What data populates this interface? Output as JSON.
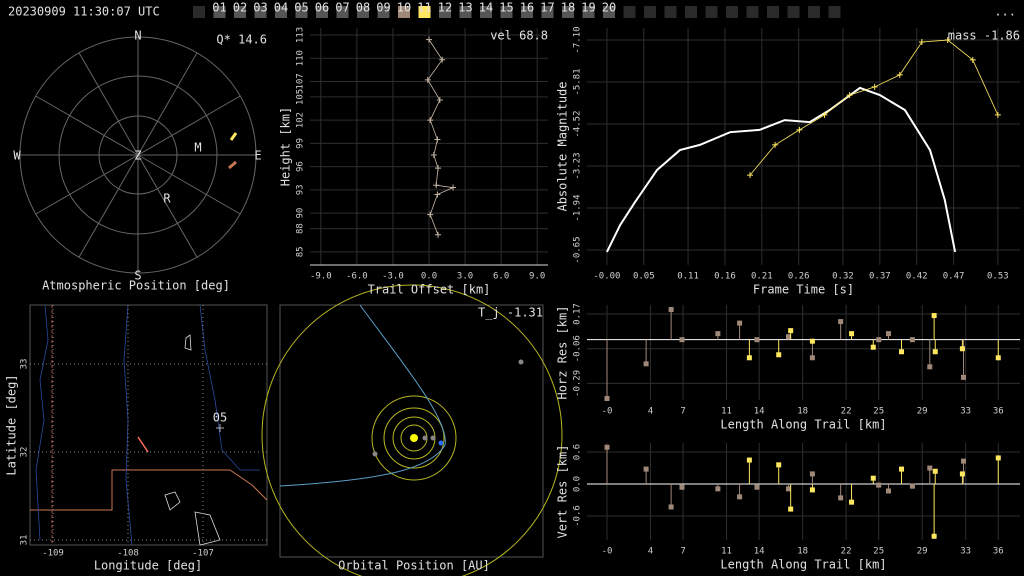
{
  "header": {
    "timestamp": "20230909 11:30:07 UTC",
    "frames": [
      "01",
      "02",
      "03",
      "04",
      "05",
      "06",
      "07",
      "08",
      "09",
      "10",
      "11",
      "12",
      "13",
      "14",
      "15",
      "16",
      "17",
      "18",
      "19",
      "20"
    ],
    "current_frame": "11",
    "menu": "..."
  },
  "polar": {
    "label": "Atmospheric Position [deg]",
    "stat": "Q* 14.6",
    "directions": {
      "north": "N",
      "east": "E",
      "south": "S",
      "west": "W",
      "zenith": "Z"
    },
    "stations": [
      "M",
      "R"
    ]
  },
  "height": {
    "type": "line",
    "stat": "vel 68.8",
    "xlabel": "Trail Offset [km]",
    "ylabel": "Height [km]",
    "xlim": [
      -9.9,
      9.9
    ],
    "ylim": [
      83.3,
      113.9
    ],
    "xticks": [
      {
        "value": -9,
        "label": "-9.0"
      },
      {
        "value": -6,
        "label": "-6.0"
      },
      {
        "value": -3,
        "label": "-3.0"
      },
      {
        "value": 0,
        "label": "0.0"
      },
      {
        "value": 3,
        "label": "3.0"
      },
      {
        "value": 6,
        "label": "6.0"
      },
      {
        "value": 9,
        "label": "9.0"
      }
    ],
    "yticks": [
      85,
      88,
      90,
      93,
      96,
      99,
      102,
      105,
      107,
      110,
      113
    ],
    "color": "#c8b8a8",
    "x": [
      0,
      1.1,
      -0.1,
      0.9,
      0.1,
      0.7,
      0.4,
      0.75,
      0.6,
      2.0,
      0.7,
      0.1,
      0.75
    ],
    "values": [
      112.4,
      109.8,
      107.2,
      104.6,
      102.0,
      99.5,
      97.5,
      95.8,
      93.6,
      93.3,
      92.4,
      89.8,
      87.2
    ]
  },
  "magnitude": {
    "type": "line",
    "stat": "mass -1.86",
    "xlabel": "Frame Time [s]",
    "ylabel": "Absolute Magnitude",
    "xlim": [
      -0.027,
      0.56
    ],
    "ylim": [
      -0.19,
      -7.47
    ],
    "xticks": [
      {
        "value": 0,
        "label": "-0.00"
      },
      0.05,
      0.11,
      0.16,
      0.21,
      0.26,
      0.32,
      0.37,
      0.42,
      0.47,
      0.53
    ],
    "yticks": [
      {
        "value": -7.1,
        "label": "-7.10"
      },
      -5.81,
      -4.52,
      -3.23,
      -1.94,
      -0.65
    ],
    "series": [
      {
        "color": "#ffffff",
        "x": [
          0.0,
          0.018,
          0.038,
          0.068,
          0.099,
          0.126,
          0.167,
          0.207,
          0.241,
          0.275,
          0.302,
          0.343,
          0.37,
          0.404,
          0.438,
          0.458,
          0.472
        ],
        "values": [
          -0.59,
          -1.42,
          -2.12,
          -3.11,
          -3.72,
          -3.88,
          -4.27,
          -4.34,
          -4.64,
          -4.58,
          -4.95,
          -5.63,
          -5.41,
          -4.95,
          -3.72,
          -2.19,
          -0.59
        ]
      },
      {
        "color": "#ffe860",
        "x": [
          0.194,
          0.228,
          0.261,
          0.295,
          0.329,
          0.363,
          0.397,
          0.427,
          0.462,
          0.496,
          0.53
        ],
        "values": [
          -2.95,
          -3.88,
          -4.34,
          -4.8,
          -5.41,
          -5.66,
          -6.03,
          -7.04,
          -7.1,
          -6.49,
          -4.8
        ]
      }
    ]
  },
  "map": {
    "xlabel": "Longitude [deg]",
    "ylabel": "Latitude [deg]",
    "station_label": "05",
    "xticks": [
      -109,
      -108,
      -107
    ],
    "yticks": [
      33,
      32,
      31
    ]
  },
  "orbit": {
    "label": "Orbital Position [AU]",
    "stat": "T_j -1.31"
  },
  "horz": {
    "type": "scatter",
    "xlabel": "Length Along Trail [km]",
    "ylabel": "Horz Res [km]",
    "xlim": [
      -1.84,
      38.0
    ],
    "ylim": [
      -0.4,
      0.23
    ],
    "xticks": [
      {
        "value": 0,
        "label": "-0"
      },
      4,
      7,
      11,
      14,
      18,
      22,
      25,
      29,
      33,
      36
    ],
    "yticks": [
      0.17,
      -0.06,
      -0.29
    ],
    "series": [
      {
        "color": "#a08878",
        "x": [
          0.0,
          3.6,
          5.9,
          6.9,
          10.2,
          12.2,
          13.8,
          16.7,
          18.9,
          21.5,
          25.0,
          25.9,
          28.1,
          29.7,
          32.8
        ],
        "values": [
          -0.39,
          -0.16,
          0.2,
          0.0,
          0.04,
          0.11,
          0.0,
          0.02,
          -0.12,
          0.12,
          0.0,
          0.04,
          0.0,
          -0.18,
          -0.25
        ]
      },
      {
        "color": "#ffe860",
        "x": [
          13.1,
          15.8,
          16.9,
          18.9,
          22.5,
          24.5,
          27.1,
          30.1,
          30.2,
          32.7,
          36.0
        ],
        "values": [
          -0.12,
          -0.1,
          0.06,
          -0.01,
          0.04,
          -0.05,
          -0.08,
          0.16,
          -0.08,
          -0.06,
          -0.12
        ]
      }
    ]
  },
  "vert": {
    "type": "scatter",
    "xlabel": "Length Along Trail [km]",
    "ylabel": "Vert Res [km]",
    "xlim": [
      -1.84,
      38.0
    ],
    "ylim": [
      -1.05,
      0.77
    ],
    "xticks": [
      {
        "value": 0,
        "label": "-0"
      },
      4,
      7,
      11,
      14,
      18,
      22,
      25,
      29,
      33,
      36
    ],
    "yticks": [
      0.6,
      {
        "value": 0,
        "label": "0.0"
      },
      -0.6
    ],
    "series": [
      {
        "color": "#a08878",
        "x": [
          0.0,
          3.6,
          5.9,
          6.9,
          10.2,
          12.2,
          13.8,
          16.7,
          18.9,
          21.5,
          25.0,
          25.9,
          28.1,
          29.7,
          32.8
        ],
        "values": [
          0.69,
          0.28,
          -0.43,
          -0.06,
          -0.09,
          -0.24,
          -0.06,
          -0.09,
          0.19,
          -0.26,
          -0.02,
          -0.13,
          -0.04,
          0.3,
          0.43
        ]
      },
      {
        "color": "#ffe860",
        "x": [
          13.1,
          15.8,
          16.9,
          18.9,
          22.5,
          24.5,
          27.1,
          30.1,
          30.2,
          32.7,
          36.0
        ],
        "values": [
          0.45,
          0.36,
          -0.47,
          -0.11,
          -0.34,
          0.11,
          0.28,
          -0.98,
          0.24,
          0.19,
          0.49
        ]
      }
    ]
  }
}
